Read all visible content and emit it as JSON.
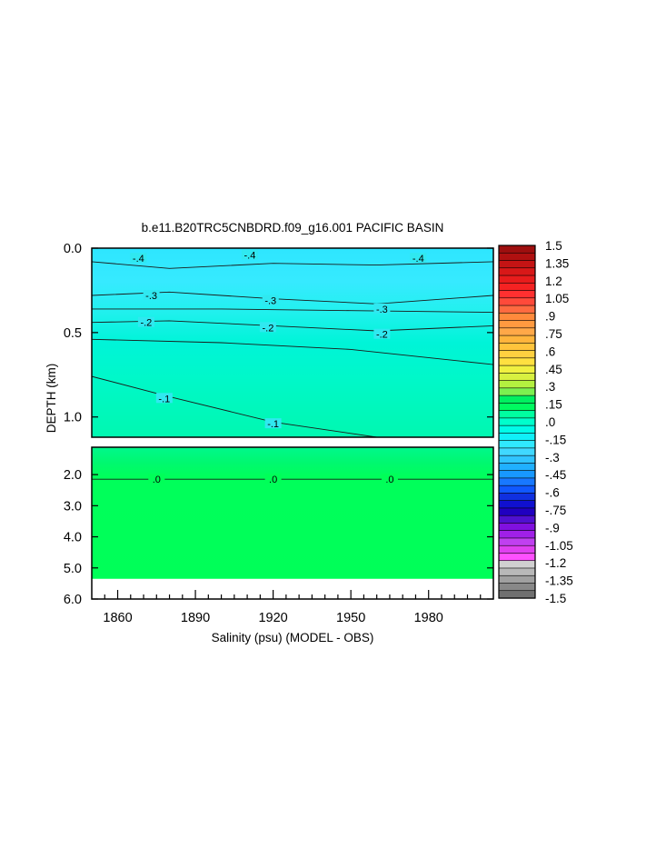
{
  "chart_data": {
    "type": "heatmap",
    "title": "b.e11.B20TRC5CNBDRD.f09_g16.001 PACIFIC BASIN",
    "xlabel": "Salinity (psu) (MODEL - OBS)",
    "ylabel": "DEPTH (km)",
    "xlim": [
      1850,
      2005
    ],
    "x_ticks": [
      "1860",
      "1890",
      "1920",
      "1950",
      "1980"
    ],
    "x_tick_values": [
      1860,
      1890,
      1920,
      1950,
      1980
    ],
    "panels": [
      {
        "name": "upper",
        "ylim": [
          0.0,
          1.12
        ],
        "y_ticks": [
          "0.0",
          "0.5",
          "1.0"
        ],
        "y_tick_values": [
          0.0,
          0.5,
          1.0
        ],
        "contours": [
          {
            "level": "-.4",
            "x": [
              1850,
              1880,
              1920,
              1960,
              2005
            ],
            "y": [
              0.08,
              0.12,
              0.09,
              0.1,
              0.08
            ]
          },
          {
            "level": "-.3",
            "x": [
              1850,
              1880,
              1920,
              1960,
              2005
            ],
            "y": [
              0.28,
              0.26,
              0.3,
              0.33,
              0.28
            ]
          },
          {
            "level": "-.3",
            "x": [
              1850,
              1900,
              1950,
              2005
            ],
            "y": [
              0.36,
              0.36,
              0.37,
              0.38
            ]
          },
          {
            "level": "-.2",
            "x": [
              1850,
              1880,
              1920,
              1960,
              2005
            ],
            "y": [
              0.44,
              0.43,
              0.46,
              0.49,
              0.46
            ]
          },
          {
            "level": "-.2",
            "x": [
              1850,
              1900,
              1950,
              2005
            ],
            "y": [
              0.54,
              0.56,
              0.6,
              0.69
            ]
          },
          {
            "level": "-.1",
            "x": [
              1850,
              1880,
              1920,
              1960
            ],
            "y": [
              0.76,
              0.88,
              1.03,
              1.12
            ]
          }
        ],
        "contour_labels": [
          {
            "text": "-.4",
            "x": 1868,
            "y": 0.06
          },
          {
            "text": "-.4",
            "x": 1911,
            "y": 0.04
          },
          {
            "text": "-.4",
            "x": 1976,
            "y": 0.06
          },
          {
            "text": "-.3",
            "x": 1873,
            "y": 0.28
          },
          {
            "text": "-.3",
            "x": 1919,
            "y": 0.31
          },
          {
            "text": "-.3",
            "x": 1962,
            "y": 0.36
          },
          {
            "text": "-.2",
            "x": 1871,
            "y": 0.44
          },
          {
            "text": "-.2",
            "x": 1918,
            "y": 0.47
          },
          {
            "text": "-.2",
            "x": 1962,
            "y": 0.51
          },
          {
            "text": "-.1",
            "x": 1878,
            "y": 0.89
          },
          {
            "text": "-.1",
            "x": 1920,
            "y": 1.04
          }
        ]
      },
      {
        "name": "lower",
        "ylim": [
          1.12,
          6.0
        ],
        "y_ticks": [
          "2.0",
          "3.0",
          "4.0",
          "5.0",
          "6.0"
        ],
        "y_tick_values": [
          2.0,
          3.0,
          4.0,
          5.0,
          6.0
        ],
        "no_data_below": 5.35,
        "contours": [
          {
            "level": ".0",
            "x": [
              1850,
              1900,
              1950,
              2005
            ],
            "y": [
              2.15,
              2.15,
              2.15,
              2.15
            ]
          }
        ],
        "contour_labels": [
          {
            "text": ".0",
            "x": 1875,
            "y": 2.15
          },
          {
            "text": ".0",
            "x": 1920,
            "y": 2.15
          },
          {
            "text": ".0",
            "x": 1965,
            "y": 2.15
          }
        ]
      }
    ],
    "colorbar": {
      "labels": [
        "1.5",
        "1.35",
        "1.2",
        "1.05",
        ".9",
        ".75",
        ".6",
        ".45",
        ".3",
        ".15",
        ".0",
        "-.15",
        "-.3",
        "-.45",
        "-.6",
        "-.75",
        "-.9",
        "-1.05",
        "-1.2",
        "-1.35",
        "-1.5"
      ],
      "colors": [
        "#9e0f0f",
        "#b01010",
        "#c41414",
        "#d81818",
        "#e81c1c",
        "#f52222",
        "#ff3030",
        "#ff4a3a",
        "#ff6a40",
        "#ff8a3c",
        "#ff9a40",
        "#ffa848",
        "#ffb43c",
        "#ffc43c",
        "#ffd040",
        "#ffe040",
        "#f0f040",
        "#d8f040",
        "#b4f040",
        "#7cf050",
        "#00f060",
        "#00fa60",
        "#00ffa0",
        "#00ffcc",
        "#00fce8",
        "#10f0f8",
        "#30e8ff",
        "#40d8ff",
        "#30c4ff",
        "#20b0ff",
        "#1898ff",
        "#1878ff",
        "#1058ff",
        "#1030e0",
        "#1010d0",
        "#2000c0",
        "#5010d0",
        "#8010e0",
        "#a020e8",
        "#c040f0",
        "#e040f0",
        "#ff50ff",
        "#d0d0d0",
        "#b8b8b8",
        "#a0a0a0",
        "#888888",
        "#707070"
      ]
    }
  }
}
